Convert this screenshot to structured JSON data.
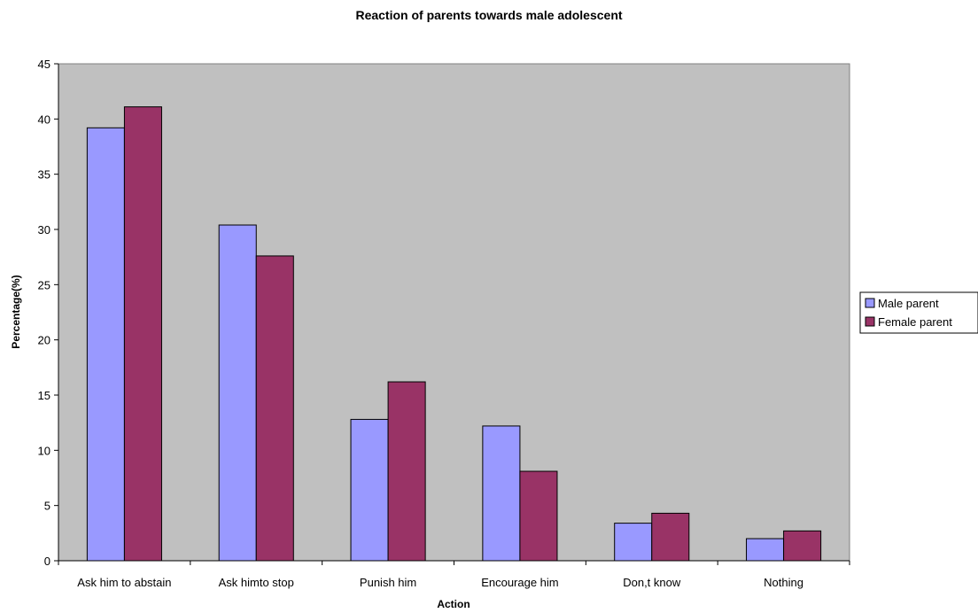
{
  "chart_data": {
    "type": "bar",
    "title": "Reaction of parents towards male adolescent",
    "xlabel": "Action",
    "ylabel": "Percentage(%)",
    "categories": [
      "Ask him to abstain",
      "Ask himto stop",
      "Punish him",
      "Encourage him",
      "Don,t know",
      "Nothing"
    ],
    "series": [
      {
        "name": "Male parent",
        "color": "#9999ff",
        "values": [
          39.2,
          30.4,
          12.8,
          12.2,
          3.4,
          2.0
        ]
      },
      {
        "name": "Female parent",
        "color": "#993366",
        "values": [
          41.1,
          27.6,
          16.2,
          8.1,
          4.3,
          2.7
        ]
      }
    ],
    "ylim": [
      0,
      45
    ],
    "yticks": [
      0,
      5,
      10,
      15,
      20,
      25,
      30,
      35,
      40,
      45
    ],
    "plot_background": "#c0c0c0",
    "grid": false,
    "legend_position": "right"
  }
}
